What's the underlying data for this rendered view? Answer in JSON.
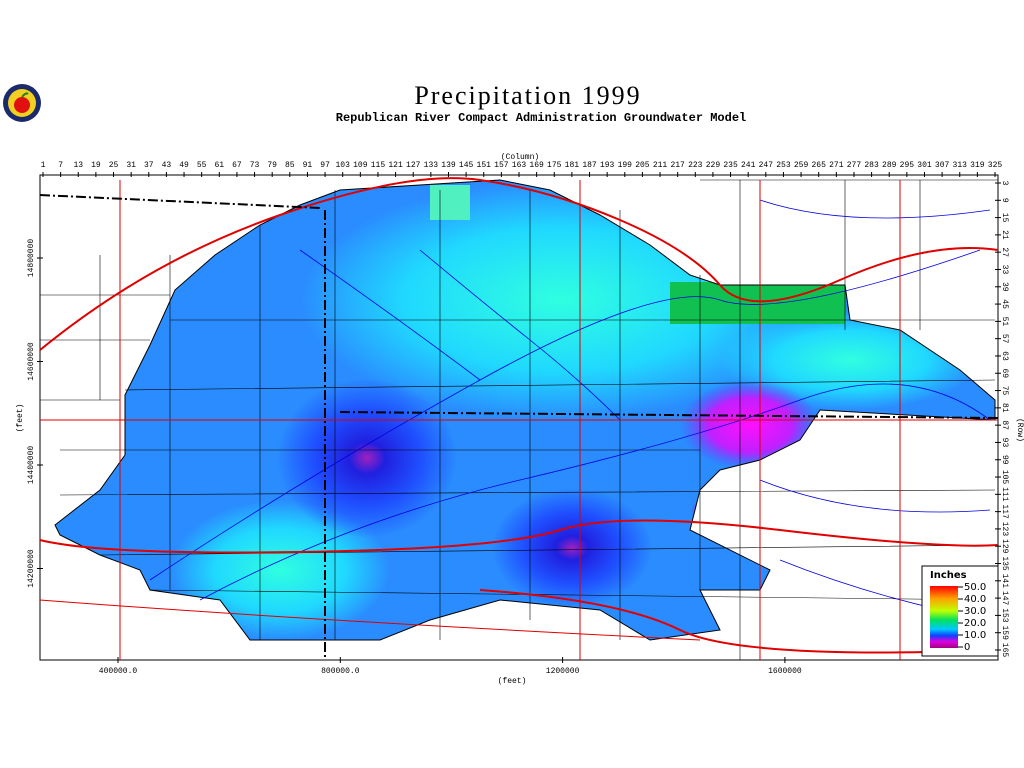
{
  "header": {
    "title": "Precipitation 1999",
    "subtitle": "Republican River Compact Administration Groundwater Model"
  },
  "top_axis": {
    "label": "(Column)",
    "ticks": [
      "1",
      "7",
      "13",
      "19",
      "25",
      "31",
      "37",
      "43",
      "49",
      "55",
      "61",
      "67",
      "73",
      "79",
      "85",
      "91",
      "97",
      "103",
      "109",
      "115",
      "121",
      "127",
      "133",
      "139",
      "145",
      "151",
      "157",
      "163",
      "169",
      "175",
      "181",
      "187",
      "193",
      "199",
      "205",
      "211",
      "217",
      "223",
      "229",
      "235",
      "241",
      "247",
      "253",
      "259",
      "265",
      "271",
      "277",
      "283",
      "289",
      "295",
      "301",
      "307",
      "313",
      "319",
      "325"
    ]
  },
  "right_axis": {
    "label": "(Row)",
    "ticks": [
      "3",
      "9",
      "15",
      "21",
      "27",
      "33",
      "39",
      "45",
      "51",
      "57",
      "63",
      "69",
      "75",
      "81",
      "87",
      "93",
      "99",
      "105",
      "111",
      "117",
      "123",
      "129",
      "135",
      "141",
      "147",
      "153",
      "159",
      "165"
    ]
  },
  "left_axis": {
    "label": "(feet)",
    "ticks": [
      "14800000",
      "14600000",
      "14400000",
      "14200000"
    ]
  },
  "bottom_axis": {
    "label": "(feet)",
    "ticks": [
      "400000.0",
      "800000.0",
      "1200000",
      "1600000"
    ]
  },
  "legend": {
    "title": "Inches",
    "labels": [
      "50.0",
      "40.0",
      "30.0",
      "20.0",
      "10.0",
      "0"
    ]
  }
}
